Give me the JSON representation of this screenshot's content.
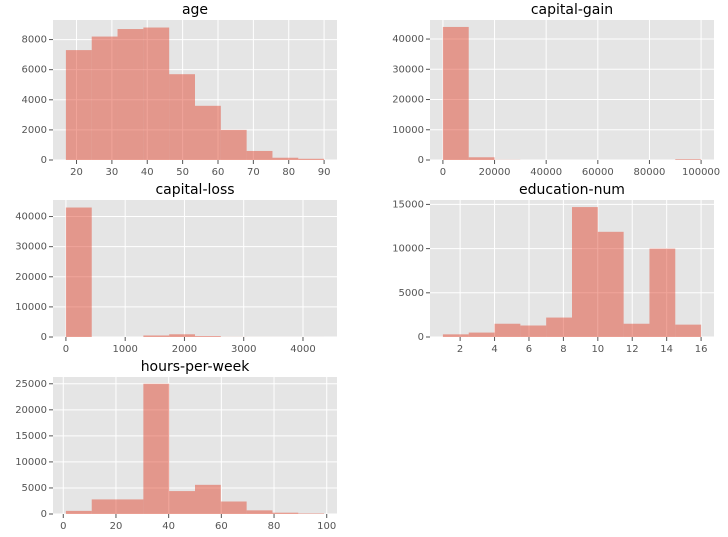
{
  "chart_data": [
    {
      "type": "histogram",
      "title": "age",
      "color": "#E24A33",
      "grid": true,
      "bins": [
        17,
        24.3,
        31.6,
        38.9,
        46.2,
        53.5,
        60.8,
        68.1,
        75.4,
        82.7,
        90
      ],
      "counts": [
        7300,
        8200,
        8700,
        8800,
        5700,
        3600,
        2000,
        600,
        150,
        80
      ],
      "xlim": [
        13.35,
        93.65
      ],
      "xticks": [
        20,
        30,
        40,
        50,
        60,
        70,
        80,
        90
      ],
      "ylim": [
        0,
        9300
      ],
      "yticks": [
        0,
        2000,
        4000,
        6000,
        8000
      ]
    },
    {
      "type": "histogram",
      "title": "capital-gain",
      "color": "#E24A33",
      "grid": true,
      "bins": [
        0,
        9999.9,
        19999.8,
        29999.7,
        39999.6,
        49999.5,
        59999.4,
        69999.3,
        79999.2,
        89999.1,
        99999
      ],
      "counts": [
        44000,
        900,
        50,
        0,
        0,
        0,
        0,
        0,
        0,
        240
      ],
      "xlim": [
        -5000,
        105000
      ],
      "xticks": [
        0,
        20000,
        40000,
        60000,
        80000,
        100000
      ],
      "ylim": [
        0,
        46300
      ],
      "yticks": [
        0,
        10000,
        20000,
        30000,
        40000
      ]
    },
    {
      "type": "histogram",
      "title": "capital-loss",
      "color": "#E24A33",
      "grid": true,
      "bins": [
        0,
        435.6,
        871.2,
        1306.8,
        1742.4,
        2178,
        2613.6,
        3049.2,
        3484.8,
        3920.4,
        4356
      ],
      "counts": [
        43000,
        0,
        0,
        500,
        900,
        300,
        30,
        10,
        5,
        5
      ],
      "xlim": [
        -218,
        4574
      ],
      "xticks": [
        0,
        1000,
        2000,
        3000,
        4000
      ],
      "ylim": [
        0,
        45500
      ],
      "yticks": [
        0,
        10000,
        20000,
        30000,
        40000
      ]
    },
    {
      "type": "histogram",
      "title": "education-num",
      "color": "#E24A33",
      "grid": true,
      "bins": [
        1,
        2.5,
        4,
        5.5,
        7,
        8.5,
        10,
        11.5,
        13,
        14.5,
        16
      ],
      "counts": [
        300,
        500,
        1500,
        1300,
        2200,
        14700,
        11900,
        1500,
        10000,
        1400
      ],
      "xlim": [
        0.25,
        16.75
      ],
      "xticks": [
        2,
        4,
        6,
        8,
        10,
        12,
        14,
        16
      ],
      "ylim": [
        0,
        15500
      ],
      "yticks": [
        0,
        5000,
        10000,
        15000
      ]
    },
    {
      "type": "histogram",
      "title": "hours-per-week",
      "color": "#E24A33",
      "grid": true,
      "bins": [
        1,
        10.8,
        20.6,
        30.4,
        40.2,
        50,
        59.8,
        69.6,
        79.4,
        89.2,
        99
      ],
      "counts": [
        600,
        2800,
        2800,
        25000,
        4400,
        5600,
        2400,
        700,
        250,
        100
      ],
      "xlim": [
        -3.9,
        103.9
      ],
      "xticks": [
        0,
        20,
        40,
        60,
        80,
        100
      ],
      "ylim": [
        0,
        26300
      ],
      "yticks": [
        0,
        5000,
        10000,
        15000,
        20000,
        25000
      ]
    }
  ]
}
